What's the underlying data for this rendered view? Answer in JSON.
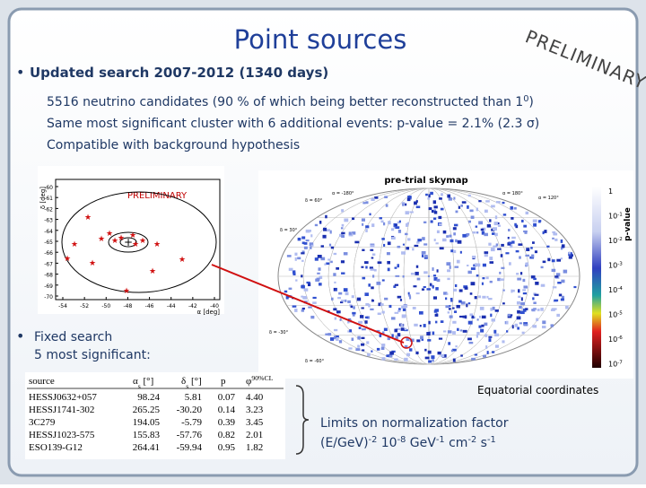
{
  "title": "Point sources",
  "stamp": "PRELIMINARY",
  "bullet1": {
    "text": "Updated search  2007-2012 (1340 days)",
    "lines": [
      {
        "base": "5516 neutrino candidates (90 % of which being better reconstructed than 1",
        "sup": "0",
        "tail": ")"
      },
      {
        "base": "Same most significant cluster with 6 additional events: p-value = 2.1% (2.3 σ)"
      },
      {
        "base": "Compatible with background hypothesis"
      }
    ]
  },
  "inset": {
    "stamp": "PRELIMINARY",
    "ylabel": "δ [deg]",
    "xlabel": "α [deg]",
    "yticks": [
      "-60",
      "-61",
      "-62",
      "-63",
      "-64",
      "-65",
      "-66",
      "-67",
      "-68",
      "-69",
      "-70"
    ],
    "xticks": [
      "-54",
      "-52",
      "-50",
      "-48",
      "-46",
      "-44",
      "-42",
      "-40"
    ]
  },
  "skymap": {
    "title": "pre-trial skymap",
    "colorbar_label": "p-value",
    "colorbar_ticks": [
      {
        "base": "1"
      },
      {
        "base": "10",
        "sup": "-1"
      },
      {
        "base": "10",
        "sup": "-2"
      },
      {
        "base": "10",
        "sup": "-3"
      },
      {
        "base": "10",
        "sup": "-4"
      },
      {
        "base": "10",
        "sup": "-5"
      },
      {
        "base": "10",
        "sup": "-6"
      },
      {
        "base": "10",
        "sup": "-7"
      }
    ],
    "grid_labels": [
      "δ = 60°",
      "δ = 30°",
      "α = -180°",
      "α = 180°",
      "α = 120°",
      "δ = -30°",
      "δ = -60°"
    ],
    "caption": "Equatorial coordinates"
  },
  "bullet2": {
    "line1": "Fixed search",
    "line2": "5 most significant:"
  },
  "table": {
    "header": [
      {
        "base": "source"
      },
      {
        "base": "α",
        "sub": "s",
        "tail": " [°]"
      },
      {
        "base": "δ",
        "sub": "s",
        "tail": " [°]"
      },
      {
        "base": "p"
      },
      {
        "base": "φ",
        "sup": "90%CL"
      }
    ],
    "rows": [
      [
        "HESSJ0632+057",
        "98.24",
        "5.81",
        "0.07",
        "4.40"
      ],
      [
        "HESSJ1741-302",
        "265.25",
        "-30.20",
        "0.14",
        "3.23"
      ],
      [
        "3C279",
        "194.05",
        "-5.79",
        "0.39",
        "3.45"
      ],
      [
        "HESSJ1023-575",
        "155.83",
        "-57.76",
        "0.82",
        "2.01"
      ],
      [
        "ESO139-G12",
        "264.41",
        "-59.94",
        "0.95",
        "1.82"
      ]
    ]
  },
  "limits": {
    "line1": "Limits on normalization factor",
    "line2": [
      {
        "base": "(E/GeV)",
        "sup": "-2"
      },
      {
        "base": " 10",
        "sup": "-8"
      },
      {
        "base": " GeV",
        "sup": "-1"
      },
      {
        "base": " cm",
        "sup": "-2"
      },
      {
        "base": " s",
        "sup": "-1"
      }
    ]
  }
}
